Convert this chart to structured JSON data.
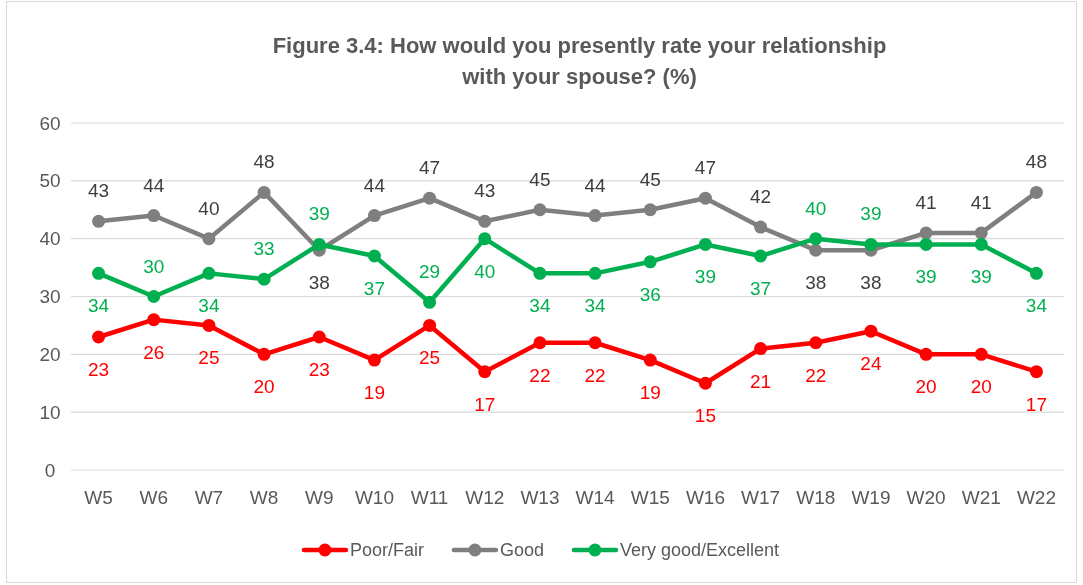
{
  "chart_data": {
    "type": "line",
    "title": "Figure 3.4: How would you presently rate your relationship\nwith your spouse? (%)",
    "categories": [
      "W5",
      "W6",
      "W7",
      "W8",
      "W9",
      "W10",
      "W11",
      "W12",
      "W13",
      "W14",
      "W15",
      "W16",
      "W17",
      "W18",
      "W19",
      "W20",
      "W21",
      "W22"
    ],
    "series": [
      {
        "name": "Poor/Fair",
        "color": "#ff0000",
        "values": [
          23,
          26,
          25,
          20,
          23,
          19,
          25,
          17,
          22,
          22,
          19,
          15,
          21,
          22,
          24,
          20,
          20,
          17
        ]
      },
      {
        "name": "Good",
        "color": "#7f7f7f",
        "values": [
          43,
          44,
          40,
          48,
          38,
          44,
          47,
          43,
          45,
          44,
          45,
          47,
          42,
          38,
          38,
          41,
          41,
          48
        ]
      },
      {
        "name": "Very good/Excellent",
        "color": "#00b050",
        "values": [
          34,
          30,
          34,
          33,
          39,
          37,
          29,
          40,
          34,
          34,
          36,
          39,
          37,
          40,
          39,
          39,
          39,
          34
        ]
      }
    ],
    "ylim": [
      0,
      60
    ],
    "yticks": [
      0,
      10,
      20,
      30,
      40,
      50,
      60
    ],
    "grid": "y",
    "legend": "bottom",
    "marker": "circle",
    "line_style": "solid",
    "data_labels": true
  }
}
